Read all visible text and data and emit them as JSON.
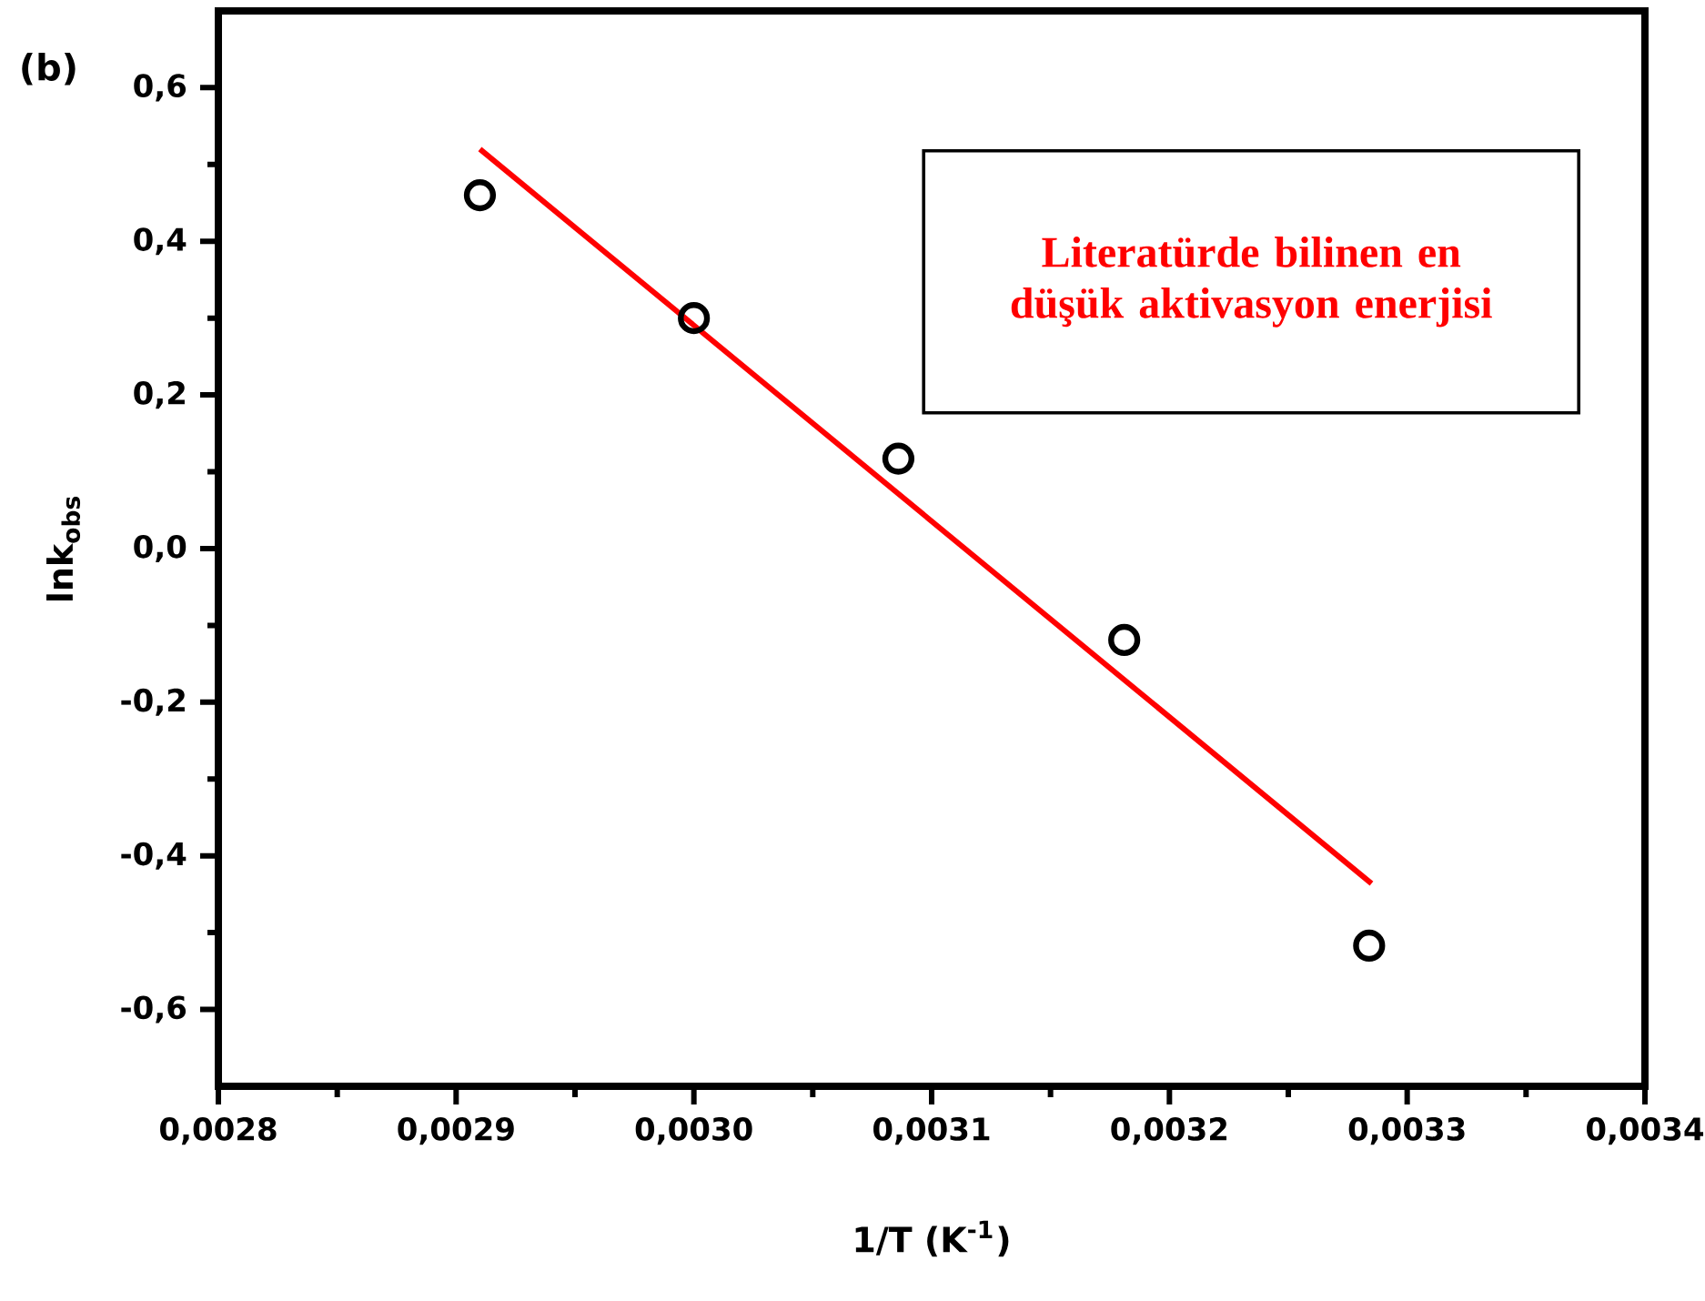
{
  "chart_data": {
    "type": "scatter",
    "xlabel": "1/T (K$^{-1}$)",
    "ylabel": "lnk$_{obs}$",
    "annotations": [
      "(b)",
      "Literatürde bilinen en düşük aktivasyon enerjisi"
    ],
    "xlim": [
      0.0028,
      0.0034
    ],
    "ylim": [
      -0.7,
      0.7
    ],
    "xticks": [
      {
        "value": 0.0028,
        "label": "0,0028"
      },
      {
        "value": 0.0029,
        "label": "0,0029"
      },
      {
        "value": 0.003,
        "label": "0,0030"
      },
      {
        "value": 0.0031,
        "label": "0,0031"
      },
      {
        "value": 0.0032,
        "label": "0,0032"
      },
      {
        "value": 0.0033,
        "label": "0,0033"
      },
      {
        "value": 0.0034,
        "label": "0,0034"
      }
    ],
    "yticks": [
      {
        "value": -0.6,
        "label": "-0,6"
      },
      {
        "value": -0.4,
        "label": "-0,4"
      },
      {
        "value": -0.2,
        "label": "-0,2"
      },
      {
        "value": 0,
        "label": "0,0"
      },
      {
        "value": 0.2,
        "label": "0,2"
      },
      {
        "value": 0.4,
        "label": "0,4"
      },
      {
        "value": 0.6,
        "label": "0,6"
      }
    ],
    "series": [
      {
        "type": "scatter",
        "marker": "circle",
        "color": "#000000",
        "x": [
          0.00291,
          0.003,
          0.003086,
          0.003181,
          0.003284
        ],
        "values": [
          0.46,
          0.3,
          0.117,
          -0.119,
          -0.517
        ]
      },
      {
        "type": "line",
        "marker": "none",
        "color": "#ff0000",
        "x": [
          0.00291,
          0.003285
        ],
        "values": [
          0.52,
          -0.436
        ]
      }
    ]
  }
}
